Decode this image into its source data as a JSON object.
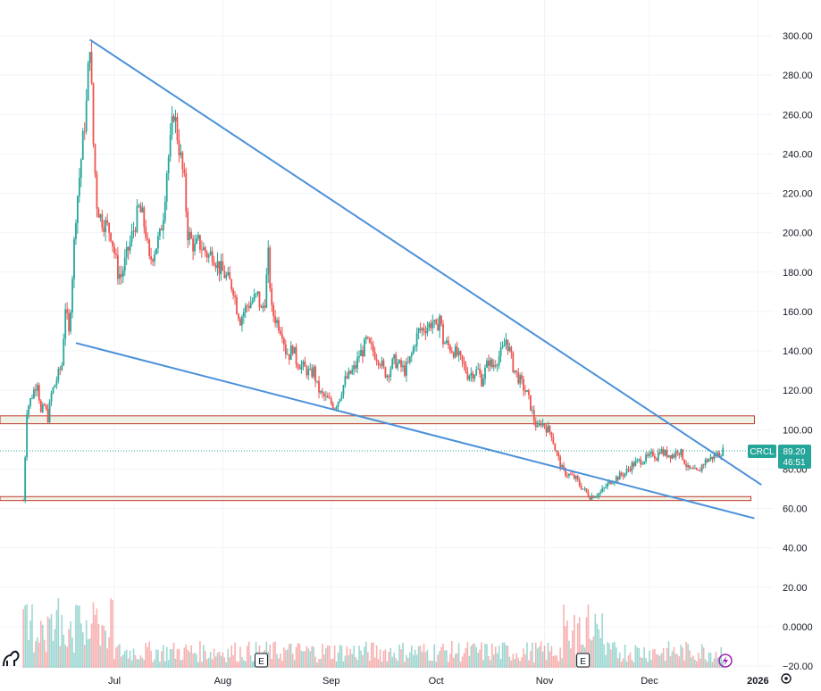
{
  "chart_data": {
    "type": "candlestick",
    "symbol": "CRCL",
    "last_price": "89.20",
    "countdown": "46:51",
    "ylim": [
      -20,
      305
    ],
    "y_ticks": [
      "300.00",
      "280.00",
      "260.00",
      "240.00",
      "220.00",
      "200.00",
      "180.00",
      "160.00",
      "140.00",
      "120.00",
      "100.00",
      "80.00",
      "60.00",
      "40.00",
      "20.00",
      "0.0000",
      "−20.00"
    ],
    "y_tick_values": [
      300,
      280,
      260,
      240,
      220,
      200,
      180,
      160,
      140,
      120,
      100,
      80,
      60,
      40,
      20,
      0,
      -20
    ],
    "x_ticks": [
      {
        "label": "Jul",
        "date": "2025-07-01"
      },
      {
        "label": "Aug",
        "date": "2025-08-01"
      },
      {
        "label": "Sep",
        "date": "2025-09-01"
      },
      {
        "label": "Oct",
        "date": "2025-10-01"
      },
      {
        "label": "Nov",
        "date": "2025-11-01"
      },
      {
        "label": "Dec",
        "date": "2025-12-01"
      },
      {
        "label": "2026",
        "date": "2026-01-01",
        "bold": true
      }
    ],
    "x_range": [
      "2025-06-05",
      "2026-01-07"
    ],
    "price_path": [
      [
        "2025-06-05",
        64
      ],
      [
        "2025-06-06",
        110
      ],
      [
        "2025-06-09",
        125
      ],
      [
        "2025-06-10",
        108
      ],
      [
        "2025-06-11",
        112
      ],
      [
        "2025-06-12",
        106
      ],
      [
        "2025-06-13",
        118
      ],
      [
        "2025-06-16",
        133
      ],
      [
        "2025-06-17",
        163
      ],
      [
        "2025-06-18",
        148
      ],
      [
        "2025-06-20",
        210
      ],
      [
        "2025-06-23",
        265
      ],
      [
        "2025-06-24",
        298
      ],
      [
        "2025-06-25",
        245
      ],
      [
        "2025-06-26",
        215
      ],
      [
        "2025-06-27",
        208
      ],
      [
        "2025-06-30",
        200
      ],
      [
        "2025-07-01",
        190
      ],
      [
        "2025-07-02",
        180
      ],
      [
        "2025-07-03",
        178
      ],
      [
        "2025-07-07",
        205
      ],
      [
        "2025-07-08",
        212
      ],
      [
        "2025-07-09",
        208
      ],
      [
        "2025-07-10",
        200
      ],
      [
        "2025-07-11",
        185
      ],
      [
        "2025-07-14",
        198
      ],
      [
        "2025-07-15",
        210
      ],
      [
        "2025-07-16",
        232
      ],
      [
        "2025-07-17",
        245
      ],
      [
        "2025-07-18",
        262
      ],
      [
        "2025-07-21",
        225
      ],
      [
        "2025-07-22",
        200
      ],
      [
        "2025-07-23",
        196
      ],
      [
        "2025-07-24",
        192
      ],
      [
        "2025-07-25",
        195
      ],
      [
        "2025-07-28",
        188
      ],
      [
        "2025-07-29",
        190
      ],
      [
        "2025-07-30",
        186
      ],
      [
        "2025-07-31",
        182
      ],
      [
        "2025-08-01",
        180
      ],
      [
        "2025-08-04",
        172
      ],
      [
        "2025-08-05",
        162
      ],
      [
        "2025-08-06",
        156
      ],
      [
        "2025-08-07",
        160
      ],
      [
        "2025-08-08",
        163
      ],
      [
        "2025-08-11",
        168
      ],
      [
        "2025-08-12",
        160
      ],
      [
        "2025-08-13",
        166
      ],
      [
        "2025-08-14",
        188
      ],
      [
        "2025-08-15",
        160
      ],
      [
        "2025-08-18",
        150
      ],
      [
        "2025-08-19",
        140
      ],
      [
        "2025-08-20",
        138
      ],
      [
        "2025-08-21",
        142
      ],
      [
        "2025-08-22",
        135
      ],
      [
        "2025-08-25",
        130
      ],
      [
        "2025-08-26",
        128
      ],
      [
        "2025-08-27",
        130
      ],
      [
        "2025-08-28",
        122
      ],
      [
        "2025-08-29",
        118
      ],
      [
        "2025-09-02",
        112
      ],
      [
        "2025-09-03",
        115
      ],
      [
        "2025-09-04",
        120
      ],
      [
        "2025-09-05",
        125
      ],
      [
        "2025-09-08",
        132
      ],
      [
        "2025-09-09",
        138
      ],
      [
        "2025-09-10",
        140
      ],
      [
        "2025-09-11",
        145
      ],
      [
        "2025-09-12",
        142
      ],
      [
        "2025-09-15",
        135
      ],
      [
        "2025-09-16",
        130
      ],
      [
        "2025-09-17",
        128
      ],
      [
        "2025-09-18",
        132
      ],
      [
        "2025-09-19",
        135
      ],
      [
        "2025-09-22",
        130
      ],
      [
        "2025-09-23",
        133
      ],
      [
        "2025-09-24",
        138
      ],
      [
        "2025-09-25",
        145
      ],
      [
        "2025-09-26",
        150
      ],
      [
        "2025-09-29",
        153
      ],
      [
        "2025-09-30",
        155
      ],
      [
        "2025-10-01",
        150
      ],
      [
        "2025-10-02",
        158
      ],
      [
        "2025-10-03",
        145
      ],
      [
        "2025-10-06",
        140
      ],
      [
        "2025-10-07",
        138
      ],
      [
        "2025-10-08",
        135
      ],
      [
        "2025-10-09",
        132
      ],
      [
        "2025-10-10",
        128
      ],
      [
        "2025-10-13",
        130
      ],
      [
        "2025-10-14",
        125
      ],
      [
        "2025-10-15",
        130
      ],
      [
        "2025-10-16",
        135
      ],
      [
        "2025-10-17",
        132
      ],
      [
        "2025-10-20",
        140
      ],
      [
        "2025-10-21",
        146
      ],
      [
        "2025-10-22",
        140
      ],
      [
        "2025-10-23",
        132
      ],
      [
        "2025-10-24",
        128
      ],
      [
        "2025-10-27",
        118
      ],
      [
        "2025-10-28",
        112
      ],
      [
        "2025-10-29",
        105
      ],
      [
        "2025-10-30",
        100
      ],
      [
        "2025-10-31",
        104
      ],
      [
        "2025-11-03",
        98
      ],
      [
        "2025-11-04",
        90
      ],
      [
        "2025-11-05",
        85
      ],
      [
        "2025-11-06",
        80
      ],
      [
        "2025-11-07",
        78
      ],
      [
        "2025-11-10",
        75
      ],
      [
        "2025-11-11",
        72
      ],
      [
        "2025-11-12",
        70
      ],
      [
        "2025-11-13",
        68
      ],
      [
        "2025-11-14",
        66
      ],
      [
        "2025-11-17",
        68
      ],
      [
        "2025-11-18",
        70
      ],
      [
        "2025-11-19",
        72
      ],
      [
        "2025-11-20",
        74
      ],
      [
        "2025-11-21",
        75
      ],
      [
        "2025-11-24",
        78
      ],
      [
        "2025-11-25",
        80
      ],
      [
        "2025-11-26",
        82
      ],
      [
        "2025-11-28",
        84
      ],
      [
        "2025-12-01",
        86
      ],
      [
        "2025-12-02",
        88
      ],
      [
        "2025-12-03",
        86
      ],
      [
        "2025-12-04",
        90
      ],
      [
        "2025-12-05",
        88
      ],
      [
        "2025-12-08",
        87
      ],
      [
        "2025-12-09",
        90
      ],
      [
        "2025-12-10",
        88
      ],
      [
        "2025-12-11",
        84
      ],
      [
        "2025-12-12",
        80
      ],
      [
        "2025-12-15",
        78
      ],
      [
        "2025-12-16",
        82
      ],
      [
        "2025-12-17",
        84
      ],
      [
        "2025-12-18",
        85
      ],
      [
        "2025-12-19",
        86
      ],
      [
        "2025-12-22",
        89.2
      ]
    ],
    "trendlines": [
      {
        "from": [
          "2025-06-24",
          298
        ],
        "to": [
          "2026-01-02",
          72
        ]
      },
      {
        "from": [
          "2025-06-20",
          144
        ],
        "to": [
          "2025-12-31",
          55
        ]
      }
    ],
    "zones": [
      {
        "from": "2025-06-01",
        "to": "2025-12-31",
        "low": 103,
        "high": 107
      },
      {
        "from": "2025-06-01",
        "to": "2025-12-30",
        "low": 64,
        "high": 66
      }
    ],
    "earnings_markers": [
      {
        "label": "E",
        "date": "2025-08-12"
      },
      {
        "label": "E",
        "date": "2025-11-12"
      }
    ],
    "colors": {
      "up": "#26a69a",
      "down": "#ef5350",
      "trend": "#4a90d9",
      "zone_fill": "#eef1e6",
      "zone_border": "#c0392b",
      "badge": "#26a69a"
    },
    "grid": true
  }
}
